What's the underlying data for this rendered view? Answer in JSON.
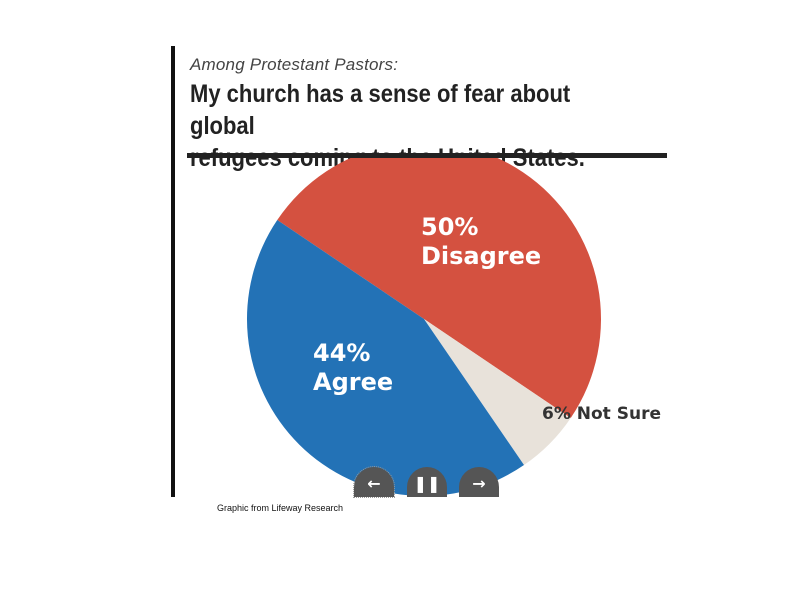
{
  "chart_data": {
    "type": "pie",
    "subtitle": "Among Protestant Pastors:",
    "title_lines": [
      "My church has a sense of fear about global",
      "refugees coming to the United States."
    ],
    "slices": [
      {
        "label": "Disagree",
        "value": 50,
        "value_text": "50%",
        "color": "#d45140"
      },
      {
        "label": "Not Sure",
        "value": 6,
        "value_text": "6% Not Sure",
        "color": "#e8e2da"
      },
      {
        "label": "Agree",
        "value": 44,
        "value_text": "44%",
        "color": "#2372b6"
      }
    ]
  },
  "controls": {
    "prev_icon": "arrow-left-icon",
    "prev_glyph": "←",
    "pause_icon": "pause-icon",
    "pause_glyph": "❚❚",
    "next_icon": "arrow-right-icon",
    "next_glyph": "→"
  },
  "caption": "Graphic from Lifeway Research"
}
